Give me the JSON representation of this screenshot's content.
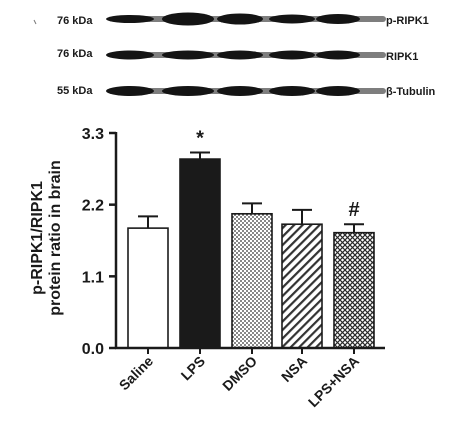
{
  "blot": {
    "rows": [
      {
        "kda": "76 kDa",
        "protein": "p-RIPK1"
      },
      {
        "kda": "76 kDa",
        "protein": "RIPK1"
      },
      {
        "kda": "55 kDa",
        "protein": "β-Tubulin"
      }
    ]
  },
  "chart_data": {
    "type": "bar",
    "categories": [
      "Saline",
      "LPS",
      "DMSO",
      "NSA",
      "LPS+NSA"
    ],
    "values": [
      1.84,
      2.9,
      2.06,
      1.9,
      1.77
    ],
    "errors": [
      0.18,
      0.1,
      0.16,
      0.22,
      0.13
    ],
    "fills": [
      "white",
      "black",
      "dots",
      "diagonal",
      "crosshatch"
    ],
    "significance": [
      "",
      "*",
      "",
      "",
      "#"
    ],
    "ylabel_lines": [
      "p-RIPK1/RIPK1",
      "protein ratio in brain"
    ],
    "ylim": [
      0,
      3.3
    ],
    "yticks": [
      "0.0",
      "1.1",
      "2.2",
      "3.3"
    ],
    "ytick_values": [
      0,
      1.1,
      2.2,
      3.3
    ],
    "grid": false,
    "legend": "none"
  },
  "colors": {
    "ink": "#1a1a1a",
    "band": "#141414",
    "background": "#ffffff"
  }
}
